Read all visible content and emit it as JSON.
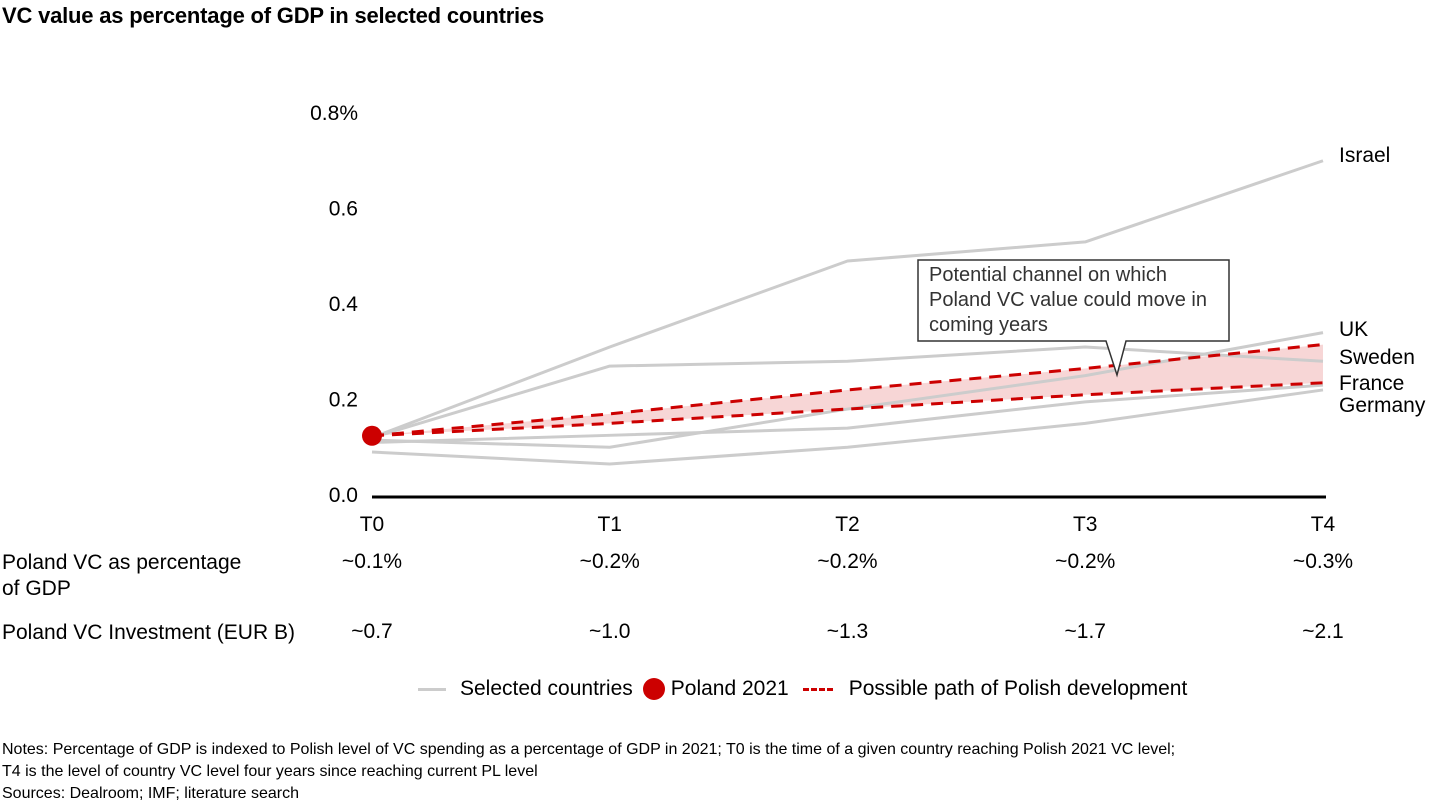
{
  "title": "VC value as percentage of GDP in selected countries",
  "chart_data": {
    "type": "line",
    "title": "VC value as percentage of GDP in selected countries",
    "xlabel": "",
    "ylabel": "",
    "x": [
      "T0",
      "T1",
      "T2",
      "T3",
      "T4"
    ],
    "ylim": [
      0,
      0.8
    ],
    "yticks": [
      {
        "value": 0.8,
        "label": "0.8%"
      },
      {
        "value": 0.6,
        "label": "0.6"
      },
      {
        "value": 0.4,
        "label": "0.4"
      },
      {
        "value": 0.2,
        "label": "0.2"
      },
      {
        "value": 0.0,
        "label": "0.0"
      }
    ],
    "grid": false,
    "series": [
      {
        "name": "Israel",
        "group": "Selected countries",
        "values": [
          0.12,
          0.31,
          0.49,
          0.53,
          0.7
        ]
      },
      {
        "name": "UK",
        "group": "Selected countries",
        "values": [
          0.115,
          0.1,
          0.18,
          0.25,
          0.34
        ]
      },
      {
        "name": "Sweden",
        "group": "Selected countries",
        "values": [
          0.12,
          0.27,
          0.28,
          0.31,
          0.28
        ]
      },
      {
        "name": "France",
        "group": "Selected countries",
        "values": [
          0.11,
          0.125,
          0.14,
          0.195,
          0.23
        ]
      },
      {
        "name": "Germany",
        "group": "Selected countries",
        "values": [
          0.09,
          0.065,
          0.1,
          0.15,
          0.22
        ]
      }
    ],
    "series_label_order": [
      "Israel",
      "UK",
      "Sweden",
      "France",
      "Germany"
    ],
    "poland_2021": {
      "x": "T0",
      "value": 0.124
    },
    "possible_path": {
      "upper": [
        0.124,
        0.17,
        0.22,
        0.265,
        0.315
      ],
      "lower": [
        0.124,
        0.15,
        0.18,
        0.21,
        0.235
      ]
    },
    "annotation": "Potential channel on which Poland VC value could move in coming years",
    "legend": {
      "placement": "bottom",
      "items": [
        {
          "label": "Selected countries",
          "symbol": "line",
          "color": "#cccccc"
        },
        {
          "label": "Poland 2021",
          "symbol": "dot",
          "color": "#cc0000"
        },
        {
          "label": "Possible path of Polish development",
          "symbol": "dashed-line",
          "color": "#cc0000"
        }
      ]
    },
    "colors": {
      "countries": "#cccccc",
      "poland": "#cc0000",
      "channel_fill": "#f5c9c9",
      "axis": "#000000"
    }
  },
  "table": {
    "rows": [
      {
        "label_line1": "Poland VC as percentage",
        "label_line2": "of GDP",
        "values": [
          "~0.1%",
          "~0.2%",
          "~0.2%",
          "~0.2%",
          "~0.3%"
        ]
      },
      {
        "label_line1": "Poland VC Investment (EUR B)",
        "label_line2": "",
        "values": [
          "~0.7",
          "~1.0",
          "~1.3",
          "~1.7",
          "~2.1"
        ]
      }
    ]
  },
  "notes": {
    "line1": "Notes: Percentage of GDP is indexed to Polish level of VC spending as a percentage of GDP in 2021; T0 is the time of a given country reaching Polish 2021 VC level;",
    "line2": "T4 is the level of country VC level four years since reaching current PL level",
    "sources": "Sources: Dealroom; IMF; literature search"
  }
}
